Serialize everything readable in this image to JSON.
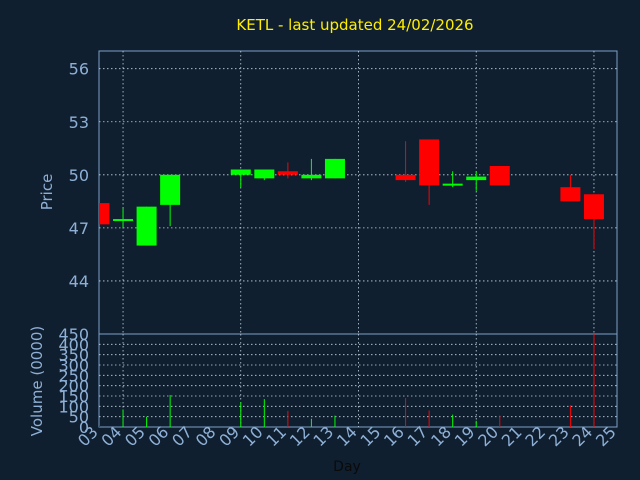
{
  "title": "KETL - last updated 24/02/2026",
  "colors": {
    "background": "#0f1f30",
    "frame": "#7da2c8",
    "grid": "#c8d4e0",
    "up": "#00ff00",
    "down": "#ff0000",
    "title": "#ffee00",
    "tick": "#8fb0d6",
    "xlabel": "#0a0a0a"
  },
  "chart_data": [
    {
      "type": "candlestick",
      "ylabel": "Price",
      "ylim": [
        41,
        57
      ],
      "yticks": [
        44,
        47,
        50,
        53,
        56
      ],
      "grid": true,
      "candles": [
        {
          "day": 3,
          "open": 48.4,
          "high": 48.4,
          "low": 47.2,
          "close": 47.2
        },
        {
          "day": 4,
          "open": 47.5,
          "high": 48.1,
          "low": 47.0,
          "close": 47.5
        },
        {
          "day": 5,
          "open": 46.0,
          "high": 48.2,
          "low": 46.0,
          "close": 48.2
        },
        {
          "day": 6,
          "open": 48.3,
          "high": 50.0,
          "low": 47.1,
          "close": 50.0
        },
        {
          "day": 9,
          "open": 50.0,
          "high": 50.3,
          "low": 49.3,
          "close": 50.3
        },
        {
          "day": 10,
          "open": 49.8,
          "high": 50.3,
          "low": 49.7,
          "close": 50.3
        },
        {
          "day": 11,
          "open": 50.2,
          "high": 50.7,
          "low": 49.8,
          "close": 50.0
        },
        {
          "day": 12,
          "open": 49.8,
          "high": 50.9,
          "low": 49.7,
          "close": 50.0
        },
        {
          "day": 13,
          "open": 49.8,
          "high": 50.9,
          "low": 49.8,
          "close": 50.9
        },
        {
          "day": 16,
          "open": 50.0,
          "high": 51.9,
          "low": 49.6,
          "close": 49.7
        },
        {
          "day": 17,
          "open": 52.0,
          "high": 52.0,
          "low": 48.3,
          "close": 49.4
        },
        {
          "day": 18,
          "open": 49.5,
          "high": 50.2,
          "low": 49.3,
          "close": 49.5
        },
        {
          "day": 19,
          "open": 49.7,
          "high": 50.2,
          "low": 49.1,
          "close": 49.9
        },
        {
          "day": 20,
          "open": 50.5,
          "high": 50.5,
          "low": 49.4,
          "close": 49.4
        },
        {
          "day": 23,
          "open": 49.3,
          "high": 50.0,
          "low": 48.5,
          "close": 48.5
        },
        {
          "day": 24,
          "open": 48.9,
          "high": 48.9,
          "low": 45.8,
          "close": 47.5
        }
      ]
    },
    {
      "type": "bar",
      "ylabel": "Volume (0000)",
      "xlabel": "Day",
      "ylim": [
        0,
        450
      ],
      "yticks": [
        0,
        50,
        100,
        150,
        200,
        250,
        300,
        350,
        400,
        450
      ],
      "x_categories": [
        "03",
        "04",
        "05",
        "06",
        "07",
        "08",
        "09",
        "10",
        "11",
        "12",
        "13",
        "14",
        "15",
        "16",
        "17",
        "18",
        "19",
        "20",
        "21",
        "22",
        "23",
        "24",
        "25"
      ],
      "grid": true,
      "volumes": [
        {
          "day": 3,
          "value": 8,
          "direction": "down"
        },
        {
          "day": 4,
          "value": 85,
          "direction": "up"
        },
        {
          "day": 5,
          "value": 50,
          "direction": "up"
        },
        {
          "day": 6,
          "value": 155,
          "direction": "up"
        },
        {
          "day": 9,
          "value": 120,
          "direction": "up"
        },
        {
          "day": 10,
          "value": 135,
          "direction": "up"
        },
        {
          "day": 11,
          "value": 78,
          "direction": "down"
        },
        {
          "day": 12,
          "value": 40,
          "direction": "up"
        },
        {
          "day": 13,
          "value": 55,
          "direction": "up"
        },
        {
          "day": 16,
          "value": 140,
          "direction": "down"
        },
        {
          "day": 17,
          "value": 80,
          "direction": "down"
        },
        {
          "day": 18,
          "value": 60,
          "direction": "up"
        },
        {
          "day": 19,
          "value": 30,
          "direction": "up"
        },
        {
          "day": 20,
          "value": 55,
          "direction": "down"
        },
        {
          "day": 23,
          "value": 105,
          "direction": "down"
        },
        {
          "day": 24,
          "value": 450,
          "direction": "down"
        }
      ]
    }
  ]
}
